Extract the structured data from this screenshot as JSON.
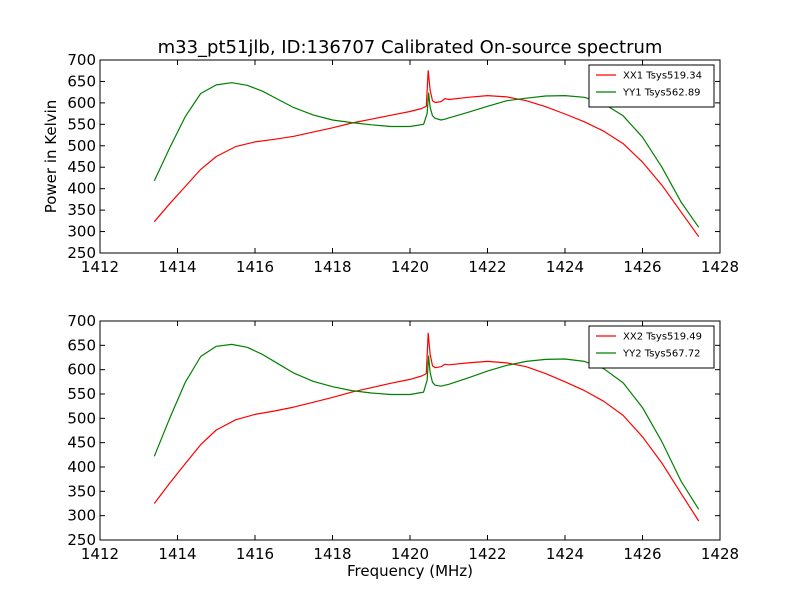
{
  "title": "m33_pt51jlb, ID:136707 Calibrated On-source spectrum",
  "chart_data": [
    {
      "type": "line",
      "xlabel": "",
      "ylabel": "Power in Kelvin",
      "xlim": [
        1412,
        1428
      ],
      "ylim": [
        250,
        700
      ],
      "xticks": [
        "1412",
        "1414",
        "1416",
        "1418",
        "1420",
        "1422",
        "1424",
        "1426",
        "1428"
      ],
      "yticks": [
        "250",
        "300",
        "350",
        "400",
        "450",
        "500",
        "550",
        "600",
        "650",
        "700"
      ],
      "legend_position": "top-right",
      "series": [
        {
          "name": "XX1 Tsys519.34",
          "color": "#ff0000",
          "x": [
            1413.4,
            1413.8,
            1414.2,
            1414.6,
            1415.0,
            1415.5,
            1416.0,
            1416.5,
            1417.0,
            1417.5,
            1418.0,
            1418.5,
            1419.0,
            1419.5,
            1420.0,
            1420.3,
            1420.42,
            1420.47,
            1420.52,
            1420.58,
            1420.65,
            1420.8,
            1420.9,
            1421.0,
            1421.5,
            1422.0,
            1422.5,
            1423.0,
            1423.5,
            1424.0,
            1424.5,
            1425.0,
            1425.5,
            1426.0,
            1426.5,
            1427.0,
            1427.45
          ],
          "y": [
            323,
            365,
            405,
            445,
            475,
            498,
            509,
            515,
            522,
            532,
            542,
            553,
            562,
            571,
            580,
            587,
            592,
            675,
            630,
            605,
            601,
            603,
            610,
            608,
            613,
            617,
            614,
            605,
            591,
            574,
            556,
            534,
            505,
            462,
            408,
            345,
            288
          ]
        },
        {
          "name": "YY1 Tsys562.89",
          "color": "#008000",
          "x": [
            1413.4,
            1413.8,
            1414.2,
            1414.6,
            1415.0,
            1415.4,
            1415.8,
            1416.2,
            1416.6,
            1417.0,
            1417.5,
            1418.0,
            1418.5,
            1419.0,
            1419.5,
            1420.0,
            1420.35,
            1420.44,
            1420.48,
            1420.52,
            1420.58,
            1420.65,
            1420.8,
            1420.9,
            1421.0,
            1421.5,
            1422.0,
            1422.5,
            1423.0,
            1423.5,
            1424.0,
            1424.5,
            1425.0,
            1425.5,
            1426.0,
            1426.5,
            1427.0,
            1427.45
          ],
          "y": [
            418,
            495,
            568,
            622,
            642,
            647,
            641,
            627,
            608,
            589,
            572,
            560,
            554,
            549,
            545,
            545,
            550,
            575,
            623,
            590,
            570,
            564,
            560,
            562,
            565,
            578,
            592,
            605,
            611,
            616,
            617,
            613,
            598,
            570,
            520,
            450,
            368,
            310
          ]
        }
      ]
    },
    {
      "type": "line",
      "xlabel": "Frequency (MHz)",
      "ylabel": "",
      "xlim": [
        1412,
        1428
      ],
      "ylim": [
        250,
        700
      ],
      "xticks": [
        "1412",
        "1414",
        "1416",
        "1418",
        "1420",
        "1422",
        "1424",
        "1426",
        "1428"
      ],
      "yticks": [
        "250",
        "300",
        "350",
        "400",
        "450",
        "500",
        "550",
        "600",
        "650",
        "700"
      ],
      "legend_position": "top-right",
      "series": [
        {
          "name": "XX2 Tsys519.49",
          "color": "#ff0000",
          "x": [
            1413.4,
            1413.8,
            1414.2,
            1414.6,
            1415.0,
            1415.5,
            1416.0,
            1416.5,
            1417.0,
            1417.5,
            1418.0,
            1418.5,
            1419.0,
            1419.5,
            1420.0,
            1420.3,
            1420.42,
            1420.47,
            1420.52,
            1420.58,
            1420.65,
            1420.8,
            1420.9,
            1421.0,
            1421.5,
            1422.0,
            1422.5,
            1423.0,
            1423.5,
            1424.0,
            1424.5,
            1425.0,
            1425.5,
            1426.0,
            1426.5,
            1427.0,
            1427.45
          ],
          "y": [
            325,
            367,
            407,
            446,
            476,
            497,
            508,
            515,
            523,
            533,
            543,
            554,
            563,
            572,
            580,
            587,
            592,
            675,
            632,
            608,
            604,
            606,
            611,
            610,
            614,
            617,
            614,
            606,
            592,
            575,
            557,
            535,
            506,
            462,
            408,
            345,
            289
          ]
        },
        {
          "name": "YY2 Tsys567.72",
          "color": "#008000",
          "x": [
            1413.4,
            1413.8,
            1414.2,
            1414.6,
            1415.0,
            1415.4,
            1415.8,
            1416.2,
            1416.6,
            1417.0,
            1417.5,
            1418.0,
            1418.5,
            1419.0,
            1419.5,
            1420.0,
            1420.35,
            1420.44,
            1420.48,
            1420.52,
            1420.58,
            1420.65,
            1420.8,
            1420.9,
            1421.0,
            1421.5,
            1422.0,
            1422.5,
            1423.0,
            1423.5,
            1424.0,
            1424.5,
            1425.0,
            1425.5,
            1426.0,
            1426.5,
            1427.0,
            1427.45
          ],
          "y": [
            422,
            500,
            574,
            627,
            648,
            652,
            646,
            631,
            612,
            593,
            576,
            565,
            557,
            552,
            549,
            549,
            554,
            578,
            628,
            594,
            574,
            568,
            566,
            568,
            570,
            583,
            597,
            609,
            617,
            621,
            622,
            617,
            602,
            573,
            522,
            452,
            370,
            313
          ]
        }
      ]
    }
  ]
}
